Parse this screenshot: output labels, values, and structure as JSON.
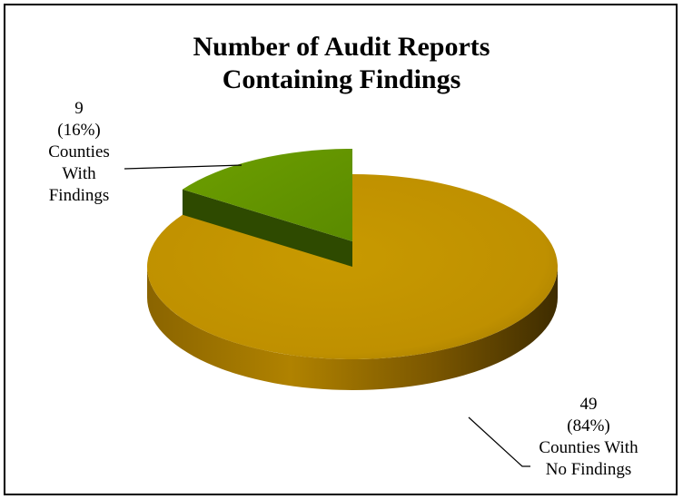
{
  "chart_data": {
    "type": "pie",
    "title": [
      "Number of Audit Reports",
      "Containing Findings"
    ],
    "series": [
      {
        "name": "",
        "values": [
          49,
          9
        ],
        "labels": [
          [
            "49",
            "(84%)",
            "Counties With",
            "No Findings"
          ],
          [
            "9",
            "(16%)",
            "Counties",
            "With",
            "Findings"
          ]
        ],
        "percentages": [
          84,
          16
        ]
      }
    ],
    "colors": [
      "#c49a00",
      "#5f9100"
    ],
    "three_d": true,
    "exploded_slice": "Counties With Findings"
  }
}
